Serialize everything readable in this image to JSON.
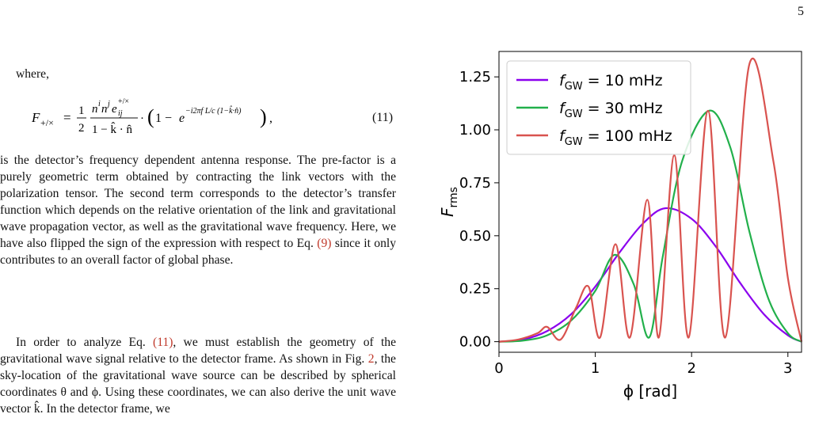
{
  "page": {
    "number": "5"
  },
  "text": {
    "where": "where,",
    "equation_number": "(11)",
    "para1": "is the detector’s frequency dependent antenna response. The pre-factor is a purely geometric term obtained by contracting the link vectors with the polarization tensor. The second term corresponds to the detector’s transfer function which depends on the relative orientation of the link and gravitational wave propagation vector, as well as the gravitational wave frequency. Here, we have also flipped the sign of the expression with respect to Eq. (9) since it only contributes to an overall factor of global phase.",
    "para1_pre": "is the detector’s frequency dependent antenna response. The pre-factor is a purely geometric term obtained by contracting the link vectors with the polarization tensor. The second term corresponds to the detector’s transfer function which depends on the relative orientation of the link and gravitational wave propagation vector, as well as the gravitational wave frequency. Here, we have also flipped the sign of the expression with respect to Eq. ",
    "para1_ref": "(9)",
    "para1_post": " since it only contributes to an overall factor of global phase.",
    "para2_a": "In order to analyze Eq. ",
    "para2_ref1": "(11)",
    "para2_b": ", we must establish the geometry of the gravitational wave signal relative to the detector frame. As shown in Fig. ",
    "para2_ref2": "2",
    "para2_c": ", the sky-location of the gravitational wave source can be described by spherical coordinates θ and ϕ. Using these coordinates, we can also derive the unit wave vector k̂. In the detector frame, we"
  },
  "figure": {
    "xlabel": "ϕ [rad]",
    "ylabel_main": "F",
    "ylabel_sub": "rms",
    "legend_prefix": "f",
    "legend_sub": "GW",
    "colors": {
      "10": "#8b00ee",
      "30": "#22b04b",
      "100": "#d9534f"
    }
  },
  "chart_data": {
    "type": "line",
    "xlabel": "ϕ [rad]",
    "ylabel": "F_rms",
    "xlim": [
      0,
      3.1416
    ],
    "ylim": [
      -0.05,
      1.37
    ],
    "xticks": [
      0,
      1,
      2,
      3
    ],
    "yticks": [
      0.0,
      0.25,
      0.5,
      0.75,
      1.0,
      1.25
    ],
    "xtick_labels": [
      "0",
      "1",
      "2",
      "3"
    ],
    "ytick_labels": [
      "0.00",
      "0.25",
      "0.50",
      "0.75",
      "1.00",
      "1.25"
    ],
    "legend_position": "top-left",
    "series": [
      {
        "name": "f_GW = 10 mHz",
        "legend_value": "= 10 mHz",
        "color": "#8b00ee",
        "x": [
          0,
          0.25,
          0.5,
          0.75,
          1.0,
          1.25,
          1.5,
          1.73,
          2.0,
          2.25,
          2.5,
          2.75,
          3.0,
          3.1416
        ],
        "y": [
          0,
          0.01,
          0.05,
          0.13,
          0.26,
          0.42,
          0.56,
          0.63,
          0.58,
          0.45,
          0.28,
          0.13,
          0.03,
          0
        ]
      },
      {
        "name": "f_GW = 30 mHz",
        "legend_value": "= 30 mHz",
        "color": "#22b04b",
        "x": [
          0,
          0.25,
          0.5,
          0.75,
          1.0,
          1.2,
          1.4,
          1.56,
          1.7,
          1.9,
          2.18,
          2.4,
          2.6,
          2.8,
          3.0,
          3.1416
        ],
        "y": [
          0,
          0.005,
          0.03,
          0.1,
          0.24,
          0.41,
          0.27,
          0.02,
          0.4,
          0.85,
          1.09,
          0.92,
          0.52,
          0.2,
          0.04,
          0
        ]
      },
      {
        "name": "f_GW = 100 mHz",
        "legend_value": "= 100 mHz",
        "color": "#d9534f",
        "x": [
          0,
          0.2,
          0.4,
          0.5,
          0.64,
          0.8,
          0.93,
          1.05,
          1.21,
          1.36,
          1.54,
          1.66,
          1.82,
          1.97,
          2.17,
          2.35,
          2.6,
          2.85,
          3.0,
          3.1416
        ],
        "y": [
          0,
          0.01,
          0.04,
          0.07,
          0.01,
          0.16,
          0.26,
          0.02,
          0.46,
          0.02,
          0.67,
          0.02,
          0.88,
          0.02,
          1.09,
          0.02,
          1.31,
          0.85,
          0.3,
          0
        ]
      }
    ]
  }
}
